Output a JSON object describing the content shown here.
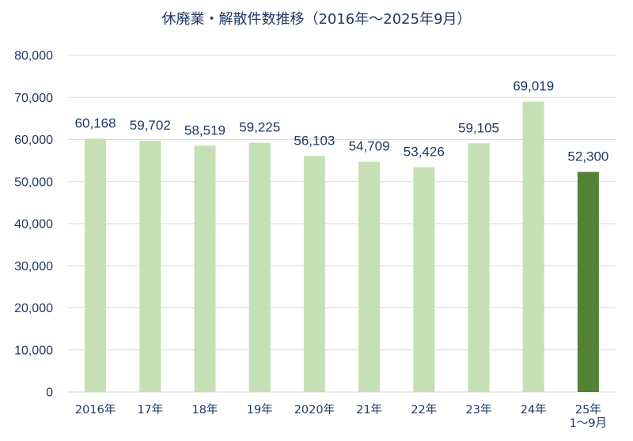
{
  "chart_data": {
    "type": "bar",
    "title": "休廃業・解散件数推移（2016年～2025年9月）",
    "categories": [
      [
        "2016年"
      ],
      [
        "17年"
      ],
      [
        "18年"
      ],
      [
        "19年"
      ],
      [
        "2020年"
      ],
      [
        "21年"
      ],
      [
        "22年"
      ],
      [
        "23年"
      ],
      [
        "24年"
      ],
      [
        "25年",
        "1～9月"
      ]
    ],
    "values": [
      60168,
      59702,
      58519,
      59225,
      56103,
      54709,
      53426,
      59105,
      69019,
      52300
    ],
    "data_labels": [
      "60,168",
      "59,702",
      "58,519",
      "59,225",
      "56,103",
      "54,709",
      "53,426",
      "59,105",
      "69,019",
      "52,300"
    ],
    "ylim": [
      0,
      80000
    ],
    "y_ticks": [
      {
        "value": 0,
        "label": "0"
      },
      {
        "value": 10000,
        "label": "10,000"
      },
      {
        "value": 20000,
        "label": "20,000"
      },
      {
        "value": 30000,
        "label": "30,000"
      },
      {
        "value": 40000,
        "label": "40,000"
      },
      {
        "value": 50000,
        "label": "50,000"
      },
      {
        "value": 60000,
        "label": "60,000"
      },
      {
        "value": 70000,
        "label": "70,000"
      },
      {
        "value": 80000,
        "label": "80,000"
      }
    ],
    "grid": true,
    "legend": "none",
    "highlight_index": 9,
    "colors": {
      "bar": "#c5e0b4",
      "highlight": "#538135",
      "grid": "#d9d9d9",
      "text": "#1f3864"
    }
  }
}
